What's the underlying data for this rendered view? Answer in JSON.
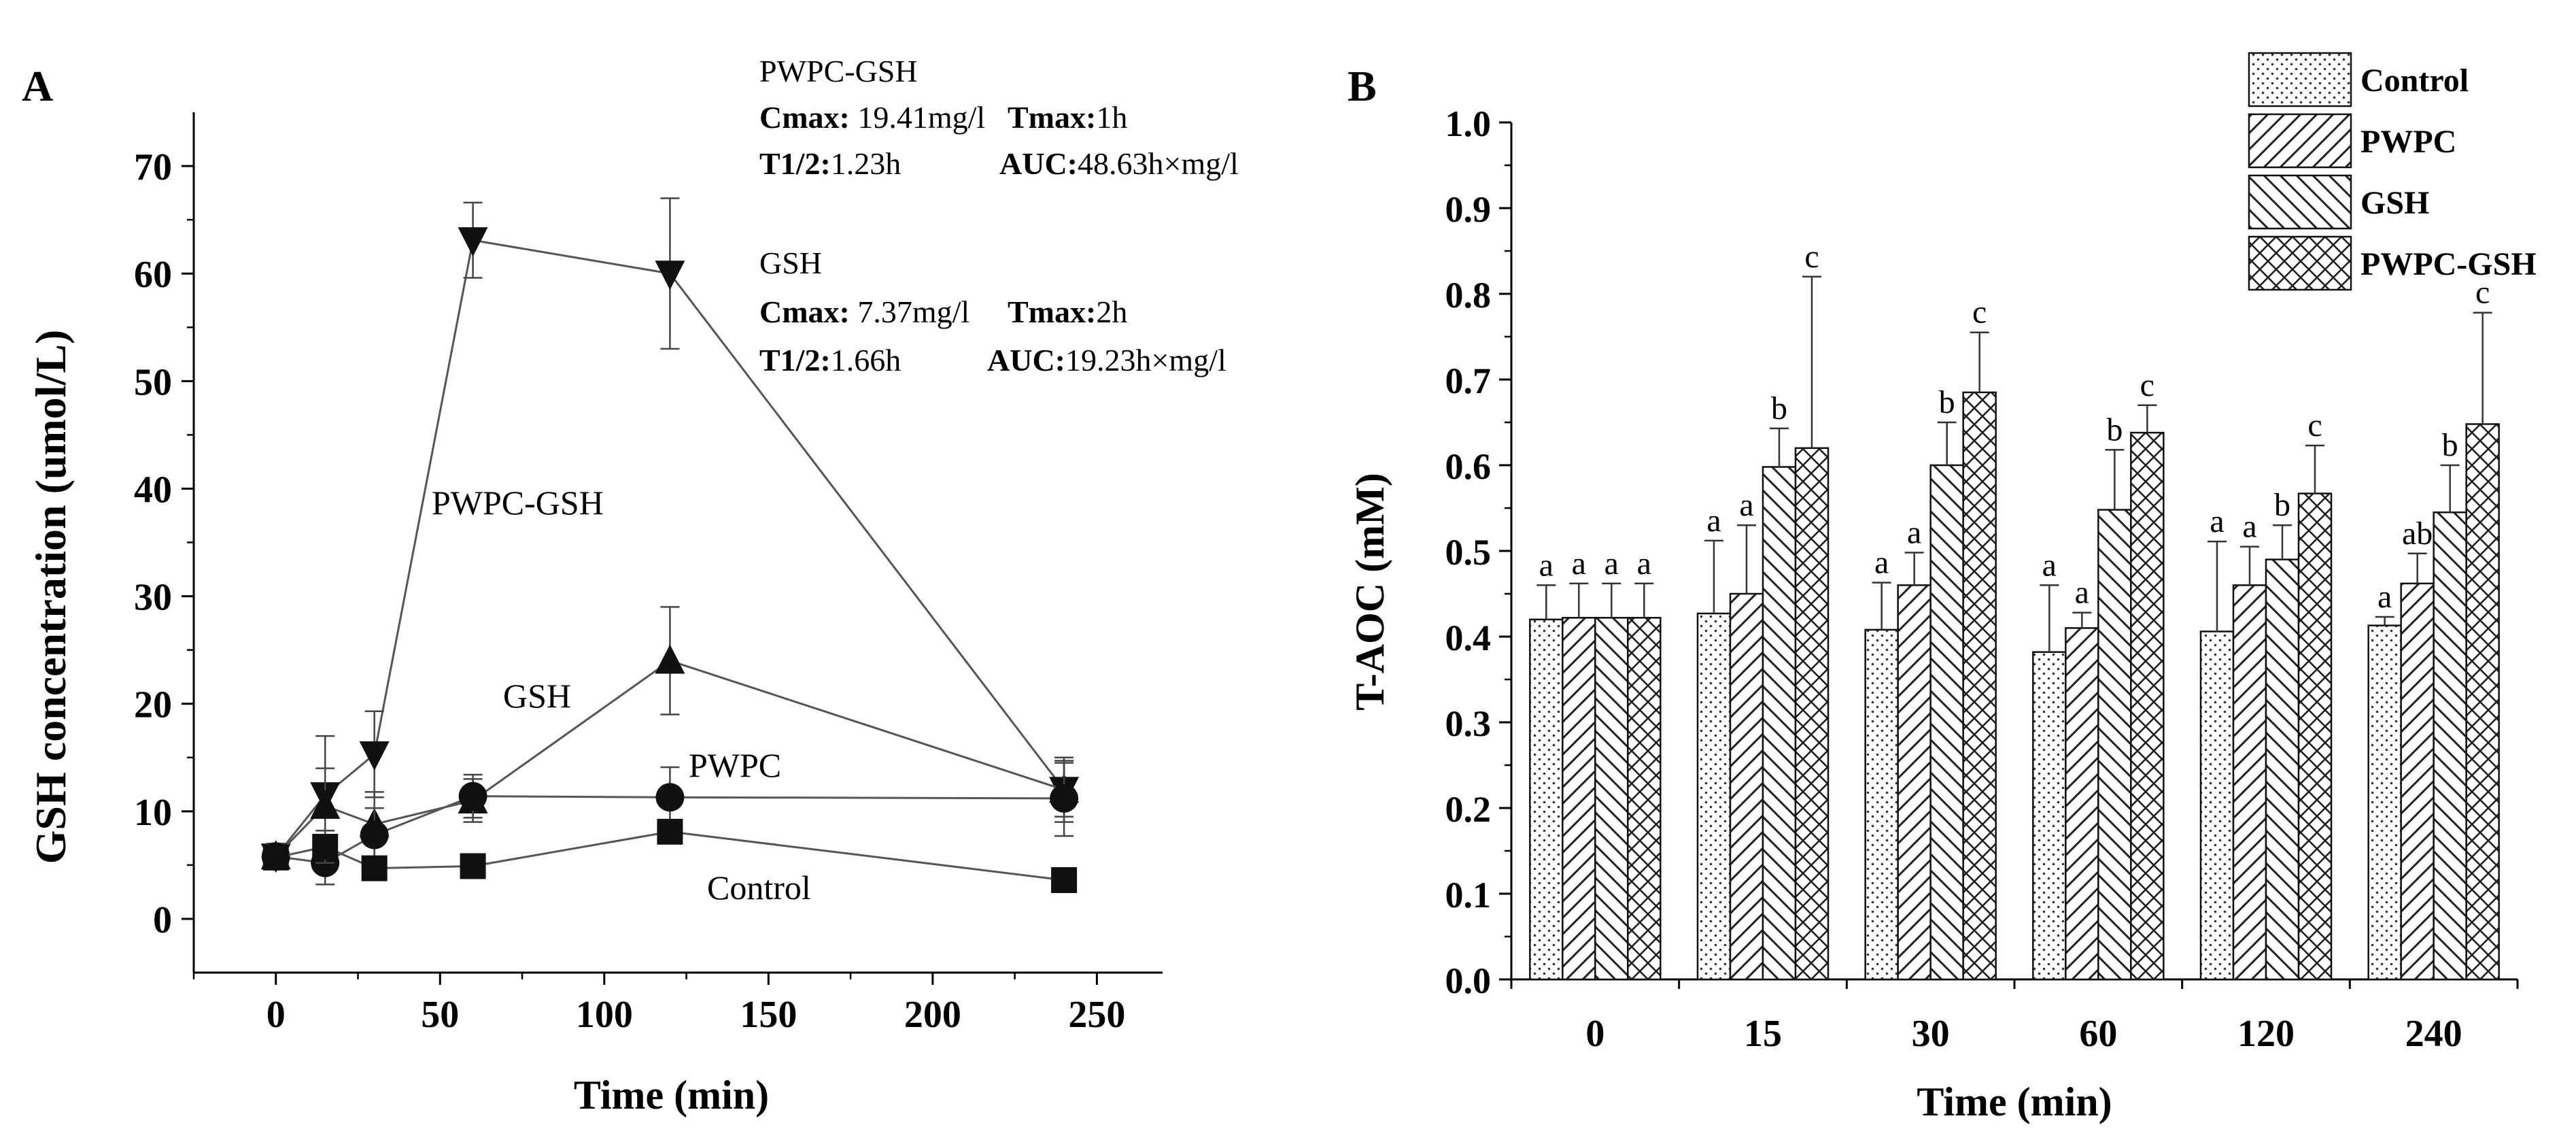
{
  "chart_data": [
    {
      "type": "line",
      "panel_label": "A",
      "xlabel": "Time (min)",
      "ylabel": "GSH concentration (umol/L)",
      "xlim": [
        -25,
        270
      ],
      "ylim": [
        -5,
        75
      ],
      "xticks": [
        0,
        50,
        100,
        150,
        200,
        250
      ],
      "yticks": [
        0,
        10,
        20,
        30,
        40,
        50,
        60,
        70
      ],
      "series": [
        {
          "name": "PWPC-GSH",
          "marker": "triangle-down",
          "x": [
            0,
            15,
            30,
            60,
            120,
            240
          ],
          "y": [
            5.8,
            11.5,
            15.3,
            63.1,
            60.0,
            12.0
          ],
          "err": [
            1.2,
            5.5,
            4.0,
            3.5,
            7.0,
            2.5
          ]
        },
        {
          "name": "GSH",
          "marker": "triangle-up",
          "x": [
            0,
            15,
            30,
            60,
            120,
            240
          ],
          "y": [
            5.8,
            10.5,
            8.8,
            11.0,
            24.0,
            12.0
          ],
          "err": [
            1.0,
            3.5,
            3.0,
            2.0,
            5.0,
            3.0
          ]
        },
        {
          "name": "PWPC",
          "marker": "circle",
          "x": [
            0,
            15,
            30,
            60,
            120,
            240
          ],
          "y": [
            5.8,
            5.2,
            7.8,
            11.4,
            11.3,
            11.2
          ],
          "err": [
            1.2,
            2.0,
            2.5,
            2.0,
            2.8,
            3.5
          ]
        },
        {
          "name": "Control",
          "marker": "square",
          "x": [
            0,
            15,
            30,
            60,
            120,
            240
          ],
          "y": [
            5.7,
            6.7,
            4.7,
            4.9,
            8.1,
            3.6
          ],
          "err": [
            0.8,
            1.5,
            1.0,
            0.4,
            1.0,
            0.5
          ]
        }
      ],
      "line_labels": {
        "pwpc_gsh": "PWPC-GSH",
        "gsh": "GSH",
        "pwpc": "PWPC",
        "control": "Control"
      },
      "annotations": {
        "pwpc_gsh_stats": {
          "title": "PWPC-GSH",
          "cmax_label": "Cmax:",
          "cmax_value": " 19.41mg/l",
          "tmax_label": "Tmax:",
          "tmax_value": "1h",
          "t12_label": "T1/2:",
          "t12_value": "1.23h",
          "auc_label": "AUC:",
          "auc_value": "48.63h×mg/l"
        },
        "gsh_stats": {
          "title": "GSH",
          "cmax_label": "Cmax:",
          "cmax_value": " 7.37mg/l",
          "tmax_label": "Tmax:",
          "tmax_value": "2h",
          "t12_label": "T1/2:",
          "t12_value": "1.66h",
          "auc_label": "AUC:",
          "auc_value": "19.23h×mg/l"
        }
      }
    },
    {
      "type": "bar",
      "panel_label": "B",
      "xlabel": "Time (min)",
      "ylabel": "T-AOC (mM)",
      "ylim": [
        0.0,
        1.0
      ],
      "yticks": [
        "0.0",
        "0.1",
        "0.2",
        "0.3",
        "0.4",
        "0.5",
        "0.6",
        "0.7",
        "0.8",
        "0.9",
        "1.0"
      ],
      "categories": [
        "0",
        "15",
        "30",
        "60",
        "120",
        "240"
      ],
      "legend_position": "top-right",
      "series": [
        {
          "name": "Control",
          "pattern": "dots",
          "values": [
            0.42,
            0.427,
            0.408,
            0.382,
            0.406,
            0.413
          ],
          "err": [
            0.04,
            0.085,
            0.055,
            0.078,
            0.105,
            0.01
          ],
          "letters": [
            "a",
            "a",
            "a",
            "a",
            "a",
            "a"
          ]
        },
        {
          "name": "PWPC",
          "pattern": "forward-hatch",
          "values": [
            0.422,
            0.45,
            0.46,
            0.41,
            0.46,
            0.462
          ],
          "err": [
            0.04,
            0.08,
            0.038,
            0.018,
            0.045,
            0.035
          ],
          "letters": [
            "a",
            "a",
            "a",
            "a",
            "a",
            "ab"
          ]
        },
        {
          "name": "GSH",
          "pattern": "back-hatch",
          "values": [
            0.422,
            0.598,
            0.6,
            0.548,
            0.49,
            0.545
          ],
          "err": [
            0.04,
            0.045,
            0.05,
            0.07,
            0.04,
            0.055
          ],
          "letters": [
            "a",
            "b",
            "b",
            "b",
            "b",
            "b"
          ]
        },
        {
          "name": "PWPC-GSH",
          "pattern": "cross-hatch",
          "values": [
            0.422,
            0.62,
            0.685,
            0.638,
            0.567,
            0.648
          ],
          "err": [
            0.04,
            0.2,
            0.07,
            0.032,
            0.056,
            0.13
          ],
          "letters": [
            "a",
            "c",
            "c",
            "c",
            "c",
            "c"
          ]
        }
      ]
    }
  ]
}
